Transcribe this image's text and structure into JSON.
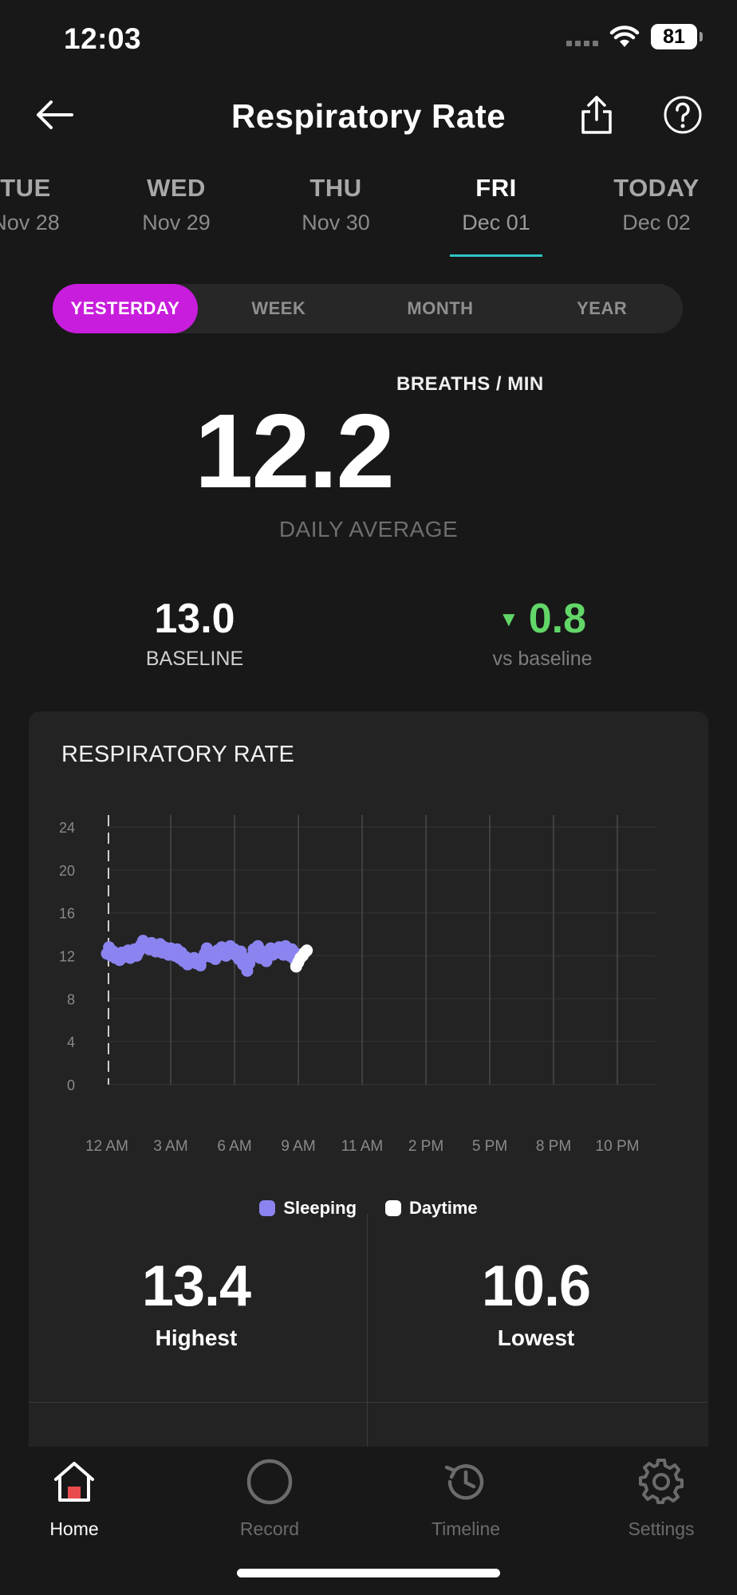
{
  "status_bar": {
    "time": "12:03",
    "battery": "81"
  },
  "header": {
    "title": "Respiratory Rate"
  },
  "dates": [
    {
      "dow": "TUE",
      "date": "Nov 28"
    },
    {
      "dow": "WED",
      "date": "Nov 29"
    },
    {
      "dow": "THU",
      "date": "Nov 30"
    },
    {
      "dow": "FRI",
      "date": "Dec 01"
    },
    {
      "dow": "TODAY",
      "date": "Dec 02"
    }
  ],
  "periods": [
    "YESTERDAY",
    "WEEK",
    "MONTH",
    "YEAR"
  ],
  "summary": {
    "unit": "BREATHS / MIN",
    "value": "12.2",
    "caption": "DAILY AVERAGE",
    "baseline_value": "13.0",
    "baseline_label": "BASELINE",
    "delta_value": "0.8",
    "delta_label": "vs baseline"
  },
  "card": {
    "title": "RESPIRATORY RATE",
    "highest_value": "13.4",
    "highest_label": "Highest",
    "lowest_value": "10.6",
    "lowest_label": "Lowest"
  },
  "chart_data": {
    "type": "scatter",
    "y_ticks": [
      "24",
      "20",
      "16",
      "12",
      "8",
      "4",
      "0"
    ],
    "ylim": [
      0,
      24
    ],
    "x_ticks": [
      "12 AM",
      "3 AM",
      "6 AM",
      "9 AM",
      "11 AM",
      "2 PM",
      "5 PM",
      "8 PM",
      "10 PM"
    ],
    "x_range_hours": [
      0,
      24
    ],
    "grid": true,
    "legend_position": "bottom",
    "series": [
      {
        "name": "Sleeping",
        "color": "#8b84f0",
        "x": [
          0.0,
          0.1,
          0.2,
          0.3,
          0.4,
          0.5,
          0.6,
          0.7,
          0.8,
          0.9,
          1.0,
          1.1,
          1.2,
          1.3,
          1.4,
          1.5,
          1.6,
          1.7,
          1.8,
          1.9,
          2.0,
          2.1,
          2.2,
          2.3,
          2.4,
          2.5,
          2.6,
          2.7,
          2.8,
          2.9,
          3.0,
          3.1,
          3.2,
          3.3,
          3.4,
          3.5,
          3.6,
          3.7,
          3.8,
          3.9,
          4.0,
          4.1,
          4.2,
          4.3,
          4.4,
          4.5,
          4.6,
          4.7,
          4.8,
          4.9,
          5.0,
          5.1,
          5.2,
          5.3,
          5.4,
          5.5,
          5.6,
          5.7,
          5.8,
          5.9,
          6.0,
          6.1,
          6.2,
          6.3,
          6.4,
          6.5,
          6.6,
          6.7,
          6.8,
          6.9,
          7.0,
          7.1,
          7.2,
          7.3,
          7.4,
          7.5,
          7.6,
          7.7,
          7.8,
          7.9,
          8.0,
          8.1,
          8.2,
          8.3,
          8.4,
          8.5,
          8.6,
          8.7,
          8.8,
          8.9,
          9.0
        ],
        "y": [
          12.2,
          12.8,
          12.0,
          12.4,
          11.8,
          12.1,
          11.6,
          12.3,
          11.9,
          12.0,
          12.5,
          11.8,
          12.2,
          12.6,
          12.0,
          12.4,
          13.0,
          13.4,
          12.8,
          13.1,
          12.6,
          13.2,
          12.9,
          12.4,
          12.7,
          13.1,
          12.3,
          12.8,
          12.5,
          12.1,
          12.7,
          12.4,
          12.0,
          12.6,
          11.8,
          12.3,
          11.5,
          11.9,
          11.2,
          11.7,
          11.4,
          11.8,
          11.3,
          11.6,
          11.1,
          11.8,
          12.2,
          12.7,
          12.4,
          11.9,
          12.3,
          11.7,
          12.5,
          12.1,
          12.8,
          12.4,
          12.0,
          12.6,
          12.9,
          12.2,
          12.6,
          12.0,
          11.7,
          12.4,
          11.2,
          11.6,
          10.6,
          11.3,
          11.9,
          12.6,
          12.2,
          12.9,
          11.8,
          12.4,
          12.0,
          11.5,
          12.2,
          12.7,
          12.1,
          12.6,
          12.3,
          12.8,
          12.5,
          12.1,
          12.9,
          12.4,
          12.0,
          12.6,
          11.7,
          12.2,
          11.9
        ]
      },
      {
        "name": "Daytime",
        "color": "#ffffff",
        "x": [
          8.9,
          9.0,
          9.1,
          9.2,
          9.3,
          9.4
        ],
        "y": [
          11.0,
          11.4,
          11.8,
          12.0,
          12.3,
          12.5
        ]
      }
    ]
  },
  "tabbar": {
    "home": "Home",
    "record": "Record",
    "timeline": "Timeline",
    "settings": "Settings"
  }
}
